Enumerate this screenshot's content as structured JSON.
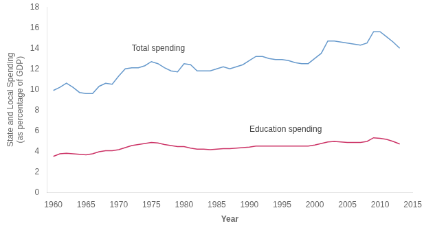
{
  "chart_data": {
    "type": "line",
    "xlabel": "Year",
    "ylabel": "State and Local Spending\n(as percentage of GDP)",
    "x": [
      1960,
      1961,
      1962,
      1963,
      1964,
      1965,
      1966,
      1967,
      1968,
      1969,
      1970,
      1971,
      1972,
      1973,
      1974,
      1975,
      1976,
      1977,
      1978,
      1979,
      1980,
      1981,
      1982,
      1983,
      1984,
      1985,
      1986,
      1987,
      1988,
      1989,
      1990,
      1991,
      1992,
      1993,
      1994,
      1995,
      1996,
      1997,
      1998,
      1999,
      2000,
      2001,
      2002,
      2003,
      2004,
      2005,
      2006,
      2007,
      2008,
      2009,
      2010,
      2011,
      2012,
      2013
    ],
    "series": [
      {
        "name": "Total spending",
        "color": "#6699cc",
        "values": [
          9.9,
          10.2,
          10.6,
          10.2,
          9.7,
          9.6,
          9.6,
          10.3,
          10.6,
          10.5,
          11.3,
          12.0,
          12.1,
          12.1,
          12.3,
          12.7,
          12.5,
          12.1,
          11.8,
          11.7,
          12.5,
          12.4,
          11.8,
          11.8,
          11.8,
          12.0,
          12.2,
          12.0,
          12.2,
          12.4,
          12.8,
          13.2,
          13.2,
          13.0,
          12.9,
          12.9,
          12.8,
          12.6,
          12.5,
          12.5,
          13.0,
          13.5,
          14.7,
          14.7,
          14.6,
          14.5,
          14.4,
          14.3,
          14.5,
          15.6,
          15.6,
          15.1,
          14.6,
          14.0
        ]
      },
      {
        "name": "Education spending",
        "color": "#cc3366",
        "values": [
          3.5,
          3.75,
          3.8,
          3.75,
          3.7,
          3.65,
          3.75,
          3.95,
          4.05,
          4.05,
          4.15,
          4.35,
          4.55,
          4.65,
          4.75,
          4.85,
          4.8,
          4.65,
          4.55,
          4.45,
          4.45,
          4.3,
          4.2,
          4.2,
          4.15,
          4.2,
          4.25,
          4.25,
          4.3,
          4.35,
          4.4,
          4.5,
          4.5,
          4.5,
          4.5,
          4.5,
          4.5,
          4.5,
          4.5,
          4.5,
          4.6,
          4.75,
          4.9,
          4.95,
          4.9,
          4.85,
          4.85,
          4.85,
          4.95,
          5.3,
          5.25,
          5.15,
          4.95,
          4.7
        ]
      }
    ],
    "annotations": [
      {
        "text": "Total spending",
        "x": 1972,
        "y": 13.6
      },
      {
        "text": "Education spending",
        "x": 1990,
        "y": 5.7
      }
    ],
    "xlim": [
      1959,
      2015
    ],
    "xticks": [
      1960,
      1965,
      1970,
      1975,
      1980,
      1985,
      1990,
      1995,
      2000,
      2005,
      2010,
      2015
    ],
    "ylim": [
      0,
      18
    ],
    "yticks": [
      0,
      2,
      4,
      6,
      8,
      10,
      12,
      14,
      16,
      18
    ],
    "grid": false
  }
}
